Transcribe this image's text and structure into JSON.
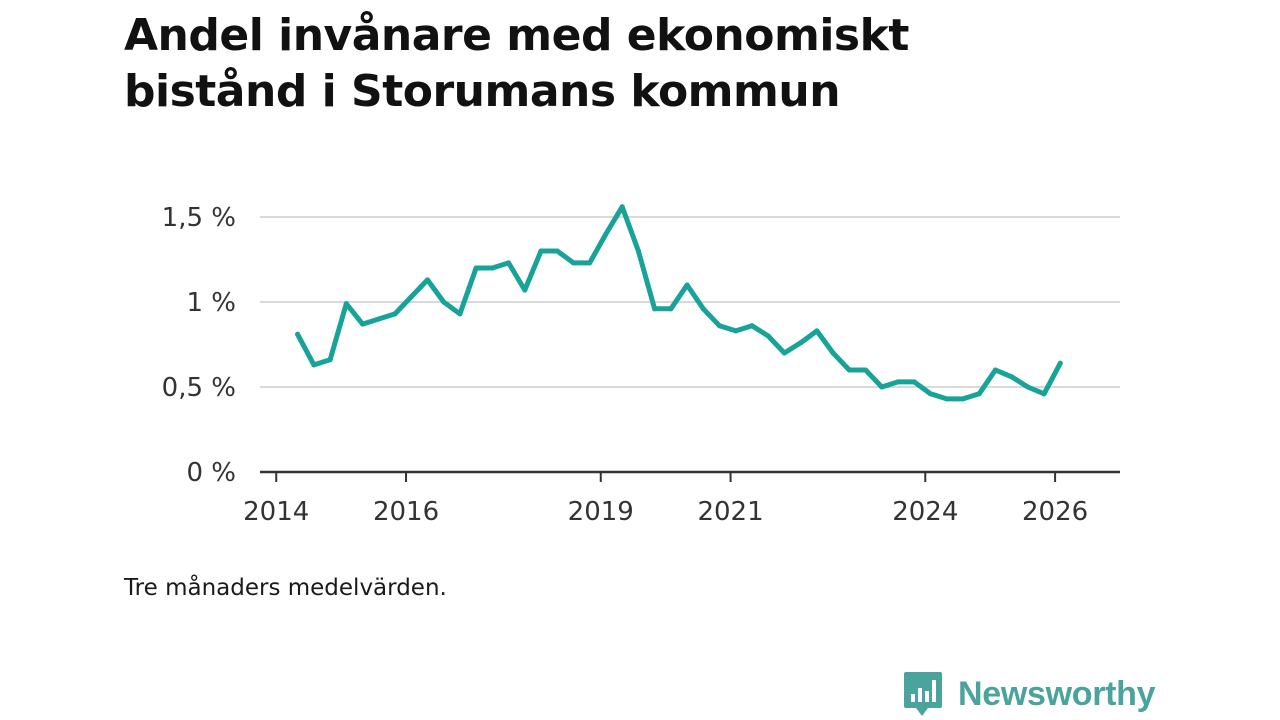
{
  "title_lines": [
    "Andel invånare med ekonomiskt",
    "bistånd i Storumans kommun"
  ],
  "note": "Tre månaders medelvärden.",
  "brand": "Newsworthy",
  "colors": {
    "line": "#17a398",
    "grid": "#d9d9d9",
    "axis": "#333333",
    "brand": "#4aa39c"
  },
  "chart_data": {
    "type": "line",
    "title": "Andel invånare med ekonomiskt bistånd i Storumans kommun",
    "xlabel": "",
    "ylabel": "",
    "x_ticks": [
      "2014",
      "2016",
      "2019",
      "2021",
      "2024",
      "2026"
    ],
    "x_tick_values": [
      2014.0,
      2016.0,
      2019.0,
      2021.0,
      2024.0,
      2026.0
    ],
    "xlim": [
      2013.75,
      2027.0
    ],
    "y_ticks": [
      0,
      0.5,
      1,
      1.5
    ],
    "y_tick_labels": [
      "0 %",
      "0,5 %",
      "1 %",
      "1,5 %"
    ],
    "ylim": [
      0,
      1.6
    ],
    "grid": true,
    "series": [
      {
        "name": "Andel invånare med ekonomiskt bistånd",
        "x": [
          2014.33,
          2014.58,
          2014.83,
          2015.08,
          2015.33,
          2015.58,
          2015.83,
          2016.08,
          2016.33,
          2016.58,
          2016.83,
          2017.08,
          2017.33,
          2017.58,
          2017.83,
          2018.08,
          2018.33,
          2018.58,
          2018.83,
          2019.08,
          2019.33,
          2019.58,
          2019.83,
          2020.08,
          2020.33,
          2020.58,
          2020.83,
          2021.08,
          2021.33,
          2021.58,
          2021.83,
          2022.08,
          2022.33,
          2022.58,
          2022.83,
          2023.08,
          2023.33,
          2023.58,
          2023.83,
          2024.08,
          2024.33,
          2024.58,
          2024.83,
          2025.08,
          2025.33,
          2025.58,
          2025.83,
          2026.08
        ],
        "values": [
          0.81,
          0.63,
          0.66,
          0.99,
          0.87,
          0.9,
          0.93,
          1.03,
          1.13,
          1.0,
          0.93,
          1.2,
          1.2,
          1.23,
          1.07,
          1.3,
          1.3,
          1.23,
          1.23,
          1.4,
          1.56,
          1.3,
          0.96,
          0.96,
          1.1,
          0.96,
          0.86,
          0.83,
          0.86,
          0.8,
          0.7,
          0.76,
          0.83,
          0.7,
          0.6,
          0.6,
          0.5,
          0.53,
          0.53,
          0.46,
          0.43,
          0.43,
          0.46,
          0.6,
          0.56,
          0.5,
          0.46,
          0.64
        ]
      }
    ]
  }
}
